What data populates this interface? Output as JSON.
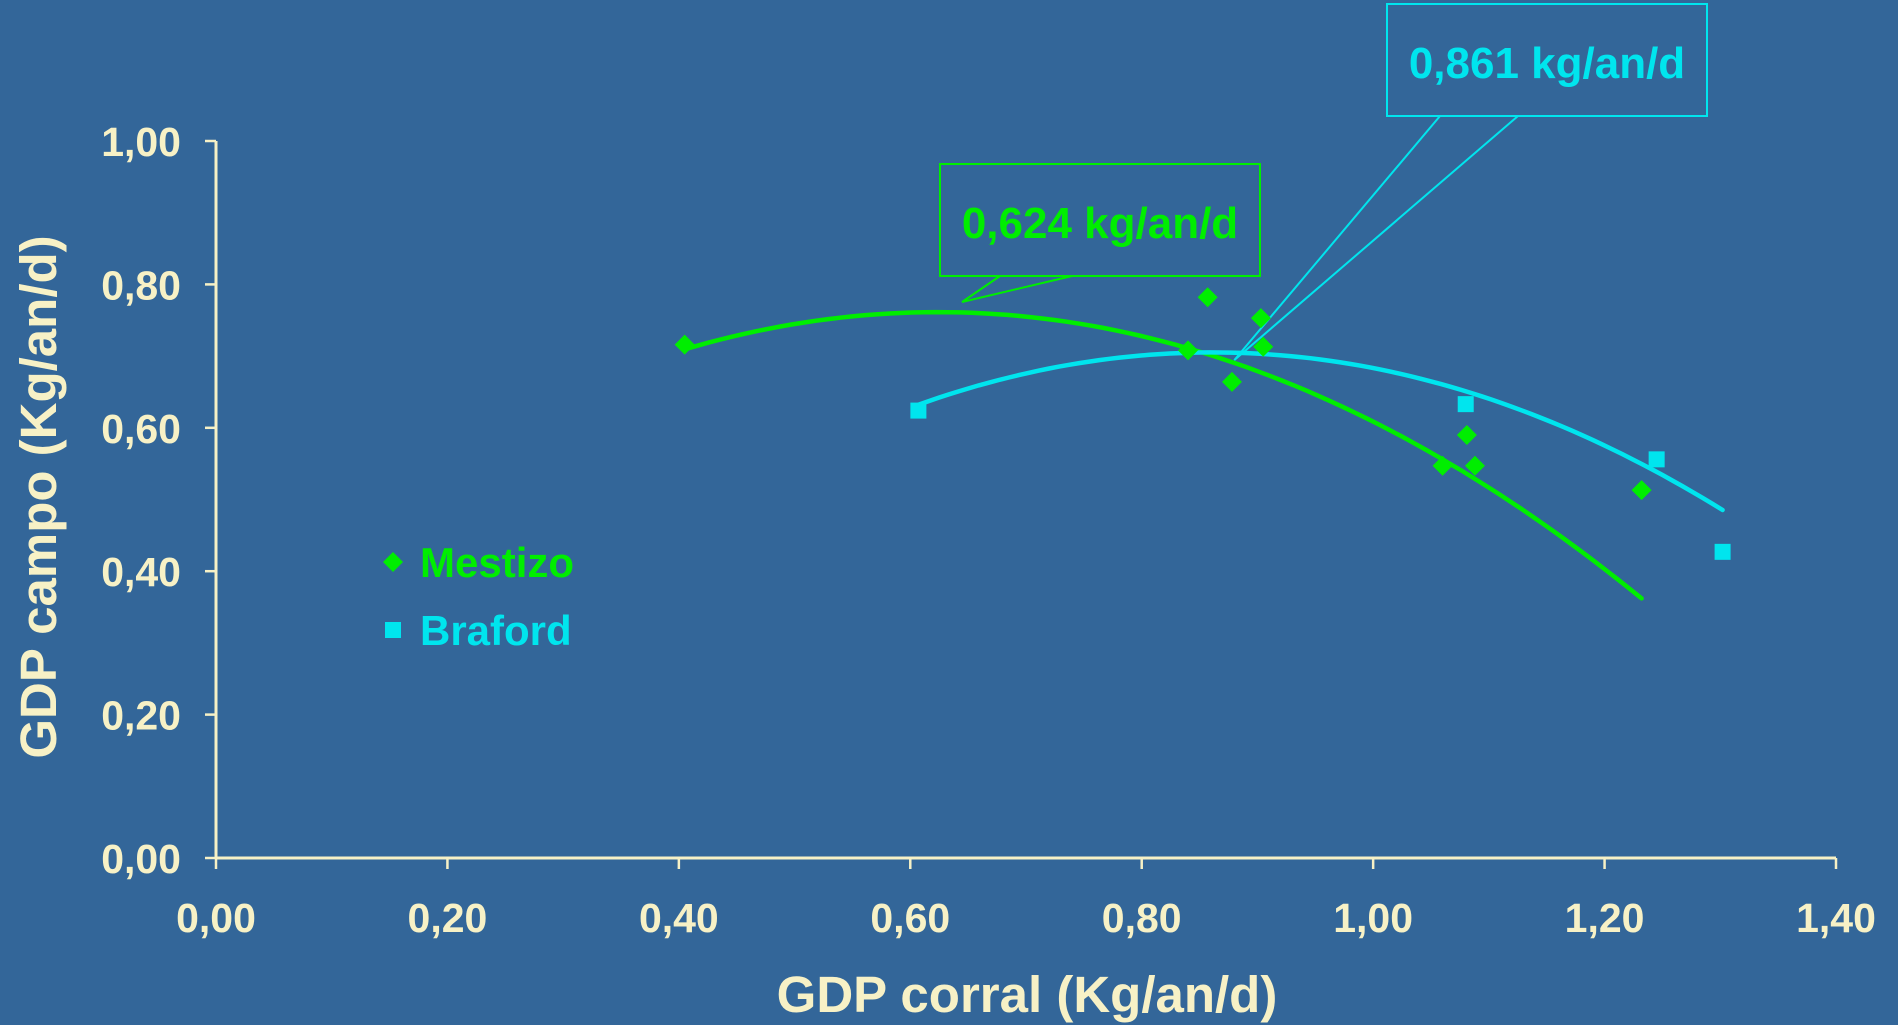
{
  "chart_data": {
    "type": "scatter",
    "title": "",
    "xlabel": "GDP corral (Kg/an/d)",
    "ylabel": "GDP campo (Kg/an/d)",
    "xlim": [
      0,
      1.4
    ],
    "ylim": [
      0,
      1.0
    ],
    "x_ticks": [
      "0,00",
      "0,20",
      "0,40",
      "0,60",
      "0,80",
      "1,00",
      "1,20",
      "1,40"
    ],
    "y_ticks": [
      "0,00",
      "0,20",
      "0,40",
      "0,60",
      "0,80",
      "1,00"
    ],
    "legend_position": "left",
    "grid": false,
    "series": [
      {
        "name": "Mestizo",
        "marker": "diamond",
        "color": "#00ee00",
        "points": [
          {
            "x": 0.405,
            "y": 0.716
          },
          {
            "x": 0.84,
            "y": 0.708
          },
          {
            "x": 0.857,
            "y": 0.782
          },
          {
            "x": 0.878,
            "y": 0.664
          },
          {
            "x": 0.903,
            "y": 0.753
          },
          {
            "x": 0.905,
            "y": 0.713
          },
          {
            "x": 1.06,
            "y": 0.547
          },
          {
            "x": 1.081,
            "y": 0.59
          },
          {
            "x": 1.088,
            "y": 0.547
          },
          {
            "x": 1.232,
            "y": 0.513
          }
        ],
        "trend": {
          "type": "quadratic",
          "x_range": [
            0.405,
            1.232
          ],
          "coefficients": [
            -1.08,
            1.3478,
            0.3408
          ]
        }
      },
      {
        "name": "Braford",
        "marker": "square",
        "color": "#00e5ee",
        "points": [
          {
            "x": 0.607,
            "y": 0.624
          },
          {
            "x": 1.08,
            "y": 0.633
          },
          {
            "x": 1.245,
            "y": 0.556
          },
          {
            "x": 1.302,
            "y": 0.427
          }
        ],
        "trend": {
          "type": "quadratic",
          "x_range": [
            0.607,
            1.302
          ],
          "coefficients": [
            -1.13,
            1.9459,
            -0.1326
          ]
        }
      }
    ],
    "annotations": [
      {
        "text": "0,624 kg/an/d",
        "series": "Mestizo",
        "target_x": 0.64,
        "target_y": 0.76
      },
      {
        "text": "0,861 kg/an/d",
        "series": "Braford",
        "target_x": 0.88,
        "target_y": 0.7
      }
    ]
  }
}
